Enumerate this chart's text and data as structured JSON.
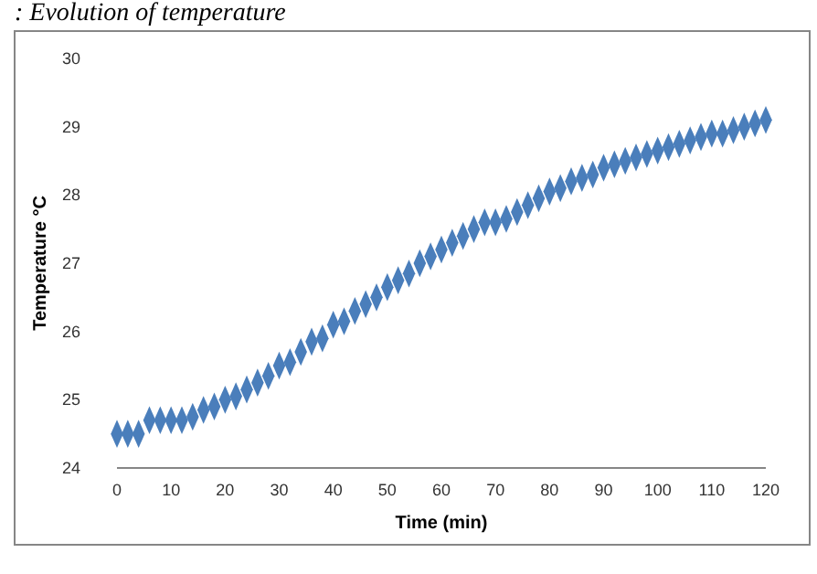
{
  "chart_data": {
    "type": "scatter",
    "title": ": Evolution of temperature",
    "xlabel": "Time (min)",
    "ylabel": "Temperature °C",
    "marker": "diamond",
    "grid": false,
    "xlim": [
      0,
      120
    ],
    "xticks": [
      0,
      10,
      20,
      30,
      40,
      50,
      60,
      70,
      80,
      90,
      100,
      110,
      120
    ],
    "ylim": [
      24,
      30
    ],
    "yticks": [
      24,
      25,
      26,
      27,
      28,
      29,
      30
    ],
    "series": [
      {
        "color": "#4a7ebb",
        "x": [
          0,
          2,
          4,
          6,
          8,
          10,
          12,
          14,
          16,
          18,
          20,
          22,
          24,
          26,
          28,
          30,
          32,
          34,
          36,
          38,
          40,
          42,
          44,
          46,
          48,
          50,
          52,
          54,
          56,
          58,
          60,
          62,
          64,
          66,
          68,
          70,
          72,
          74,
          76,
          78,
          80,
          82,
          84,
          86,
          88,
          90,
          92,
          94,
          96,
          98,
          100,
          102,
          104,
          106,
          108,
          110,
          112,
          114,
          116,
          118,
          120
        ],
        "values": [
          24.5,
          24.5,
          24.5,
          24.7,
          24.7,
          24.7,
          24.7,
          24.75,
          24.85,
          24.9,
          25.0,
          25.05,
          25.15,
          25.25,
          25.35,
          25.5,
          25.55,
          25.7,
          25.85,
          25.9,
          26.1,
          26.15,
          26.3,
          26.4,
          26.5,
          26.65,
          26.75,
          26.85,
          27.0,
          27.1,
          27.2,
          27.3,
          27.4,
          27.5,
          27.6,
          27.6,
          27.65,
          27.75,
          27.85,
          27.95,
          28.05,
          28.1,
          28.2,
          28.25,
          28.3,
          28.4,
          28.45,
          28.5,
          28.55,
          28.6,
          28.65,
          28.7,
          28.75,
          28.8,
          28.85,
          28.9,
          28.9,
          28.95,
          29.0,
          29.05,
          29.1
        ]
      }
    ]
  }
}
